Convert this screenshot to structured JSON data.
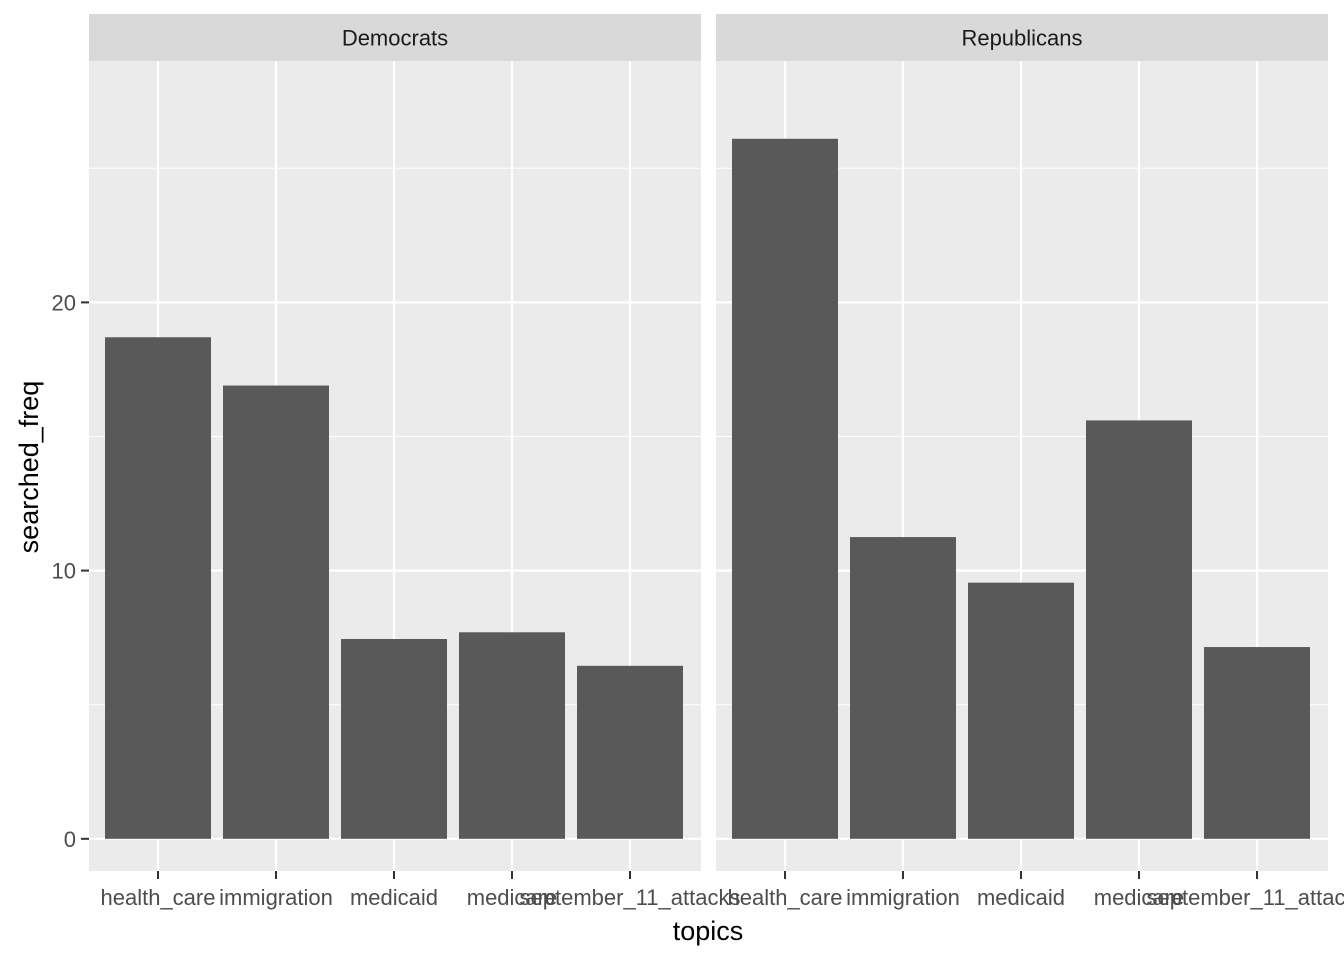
{
  "chart_data": {
    "type": "bar",
    "facet_by": [
      "Democrats",
      "Republicans"
    ],
    "xlabel": "topics",
    "ylabel": "searched_freq",
    "categories": [
      "health_care",
      "immigration",
      "medicaid",
      "medicare",
      "september_11_attacks"
    ],
    "ylim": [
      -1.2,
      29
    ],
    "yticks": [
      0,
      10,
      20
    ],
    "grid": true,
    "colors": {
      "panel_bg": "#ebebeb",
      "strip_bg": "#d9d9d9",
      "grid": "#ffffff",
      "bar": "#595959",
      "tick": "#333333"
    },
    "panels": [
      {
        "name": "Democrats",
        "values": [
          18.7,
          16.9,
          7.45,
          7.7,
          6.45
        ]
      },
      {
        "name": "Republicans",
        "values": [
          26.1,
          11.25,
          9.55,
          15.6,
          7.15
        ]
      }
    ]
  }
}
